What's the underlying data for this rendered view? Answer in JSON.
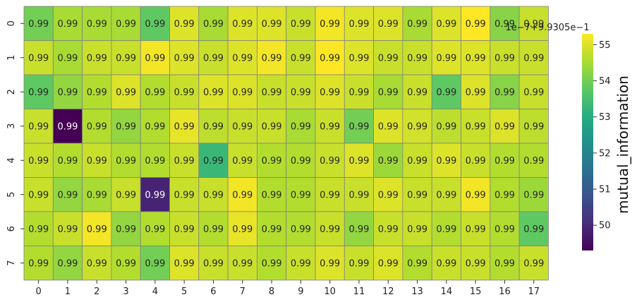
{
  "chart_data": {
    "type": "heatmap",
    "title": "",
    "xlabel": "",
    "ylabel": "",
    "x_categories": [
      "0",
      "1",
      "2",
      "3",
      "4",
      "5",
      "6",
      "7",
      "8",
      "9",
      "10",
      "11",
      "12",
      "13",
      "14",
      "15",
      "16",
      "17"
    ],
    "y_categories": [
      "0",
      "1",
      "2",
      "3",
      "4",
      "5",
      "6",
      "7"
    ],
    "cell_label": "0.99",
    "values": [
      [
        54.0,
        54.5,
        54.5,
        54.5,
        53.8,
        55.0,
        54.5,
        55.0,
        55.0,
        54.8,
        55.2,
        55.0,
        55.0,
        54.5,
        55.0,
        55.3,
        54.2,
        54.8
      ],
      [
        54.8,
        54.5,
        54.8,
        54.8,
        55.2,
        55.0,
        54.8,
        55.0,
        55.2,
        54.8,
        55.3,
        55.0,
        54.8,
        54.8,
        55.0,
        55.0,
        54.8,
        54.8
      ],
      [
        53.8,
        54.3,
        54.6,
        55.0,
        54.6,
        54.8,
        55.0,
        55.0,
        54.8,
        54.8,
        55.0,
        54.8,
        54.5,
        54.8,
        53.8,
        55.0,
        54.2,
        54.8
      ],
      [
        54.8,
        49.3,
        54.6,
        54.3,
        54.6,
        55.1,
        54.7,
        54.8,
        54.8,
        54.5,
        54.8,
        54.0,
        55.0,
        54.9,
        54.7,
        54.8,
        55.0,
        54.7
      ],
      [
        54.8,
        54.6,
        54.8,
        54.6,
        54.6,
        54.8,
        53.3,
        54.8,
        54.6,
        54.6,
        54.8,
        55.0,
        54.4,
        54.8,
        55.0,
        54.8,
        54.6,
        54.6
      ],
      [
        54.8,
        54.3,
        54.5,
        54.8,
        49.9,
        54.8,
        54.8,
        55.2,
        54.6,
        54.6,
        54.8,
        54.8,
        55.0,
        54.8,
        54.8,
        55.2,
        54.6,
        54.4
      ],
      [
        54.6,
        54.8,
        55.2,
        54.3,
        54.6,
        54.8,
        54.6,
        55.1,
        54.6,
        54.6,
        54.8,
        54.3,
        54.8,
        54.8,
        54.6,
        54.8,
        54.6,
        53.8
      ],
      [
        54.6,
        54.3,
        54.8,
        54.6,
        54.0,
        55.0,
        54.8,
        54.8,
        54.6,
        54.8,
        55.0,
        54.8,
        55.0,
        54.6,
        54.8,
        54.8,
        54.6,
        54.8
      ]
    ],
    "colorbar": {
      "label": "mutual_information",
      "offset_text": "1e−7+9.9305e−1",
      "min": 49.3,
      "max": 55.3,
      "ticks": [
        "50",
        "51",
        "52",
        "53",
        "54",
        "55"
      ],
      "colormap": "viridis"
    },
    "grid": true
  }
}
